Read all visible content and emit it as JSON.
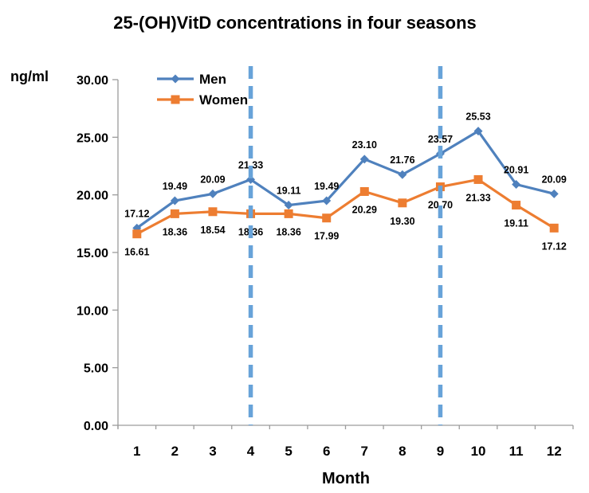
{
  "chart_data": {
    "type": "line",
    "title": "25-(OH)VitD concentrations in four seasons",
    "xlabel": "Month",
    "ylabel": "ng/ml",
    "categories": [
      "1",
      "2",
      "3",
      "4",
      "5",
      "6",
      "7",
      "8",
      "9",
      "10",
      "11",
      "12"
    ],
    "ylim": [
      0,
      30
    ],
    "ytick_labels": [
      "0.00",
      "5.00",
      "10.00",
      "15.00",
      "20.00",
      "25.00",
      "30.00"
    ],
    "grid": false,
    "legend_position": "top-left-inside",
    "legend": [
      {
        "label": "Men",
        "marker": "diamond",
        "color": "#4F81BD"
      },
      {
        "label": "Women",
        "marker": "square",
        "color": "#ED7D31"
      }
    ],
    "series": [
      {
        "name": "Men",
        "marker": "diamond",
        "color": "#4F81BD",
        "label_position": "above",
        "values": [
          17.12,
          19.49,
          20.09,
          21.33,
          19.11,
          19.49,
          23.1,
          21.76,
          23.57,
          25.53,
          20.91,
          20.09
        ]
      },
      {
        "name": "Women",
        "marker": "square",
        "color": "#ED7D31",
        "label_position": "below",
        "values": [
          16.61,
          18.36,
          18.54,
          18.36,
          18.36,
          17.99,
          20.29,
          19.3,
          20.7,
          21.33,
          19.11,
          17.12
        ]
      }
    ],
    "vlines": {
      "at_categories": [
        4,
        9
      ],
      "color": "#68A3D9",
      "style": "dashed"
    },
    "axis_color": "#9C9C9C",
    "text_color": "#000000",
    "background_color": "#FFFFFF"
  }
}
